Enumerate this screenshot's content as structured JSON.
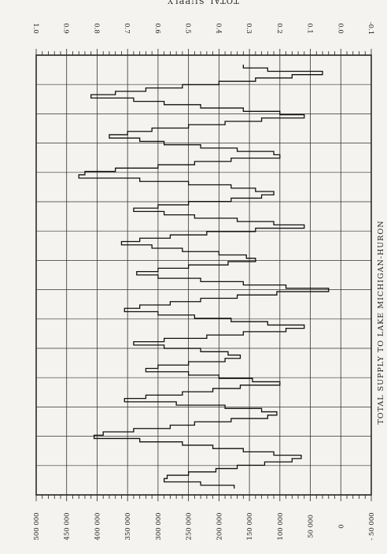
{
  "chart_data": {
    "type": "line",
    "title": "TOTAL SUPPLY TO LAKE MICHIGAN-HURON",
    "top_axis_label": "TOTAL SUPPLY",
    "top_axis_ticks": [
      "1.0",
      "0.9",
      "0.8",
      "0.7",
      "0.6",
      "0.5",
      "0.4",
      "0.3",
      "0.2",
      "0.1",
      "0.0",
      "-0.1"
    ],
    "side_axis_ticks": [
      "500 000",
      "450 000",
      "400 000",
      "350 000",
      "300 000",
      "250 000",
      "200 000",
      "150 000",
      "100 000",
      "50 000",
      "0",
      "- 50 000"
    ],
    "side_axis_range": [
      -50000,
      500000
    ],
    "top_axis_range": [
      -0.1,
      1.0
    ],
    "grid": true,
    "series": [
      {
        "values": [
          175000,
          230000,
          290000,
          285000,
          250000,
          205000,
          170000,
          125000,
          80000,
          65000,
          110000,
          160000,
          210000,
          260000,
          330000,
          405000,
          390000,
          340000,
          280000,
          240000,
          180000,
          120000,
          105000,
          130000,
          190000,
          270000,
          355000,
          320000,
          260000,
          210000,
          165000,
          100000,
          145000,
          200000,
          250000,
          320000,
          300000,
          250000,
          190000,
          165000,
          185000,
          230000,
          290000,
          340000,
          290000,
          220000,
          160000,
          90000,
          60000,
          120000,
          180000,
          240000,
          300000,
          355000,
          330000,
          280000,
          230000,
          170000,
          105000,
          20000,
          90000,
          160000,
          230000,
          300000,
          335000,
          300000,
          250000,
          185000,
          140000,
          155000,
          200000,
          260000,
          310000,
          360000,
          330000,
          280000,
          220000,
          140000,
          60000,
          110000,
          170000,
          240000,
          290000,
          340000,
          300000,
          250000,
          180000,
          130000,
          110000,
          140000,
          180000,
          250000,
          330000,
          430000,
          420000,
          370000,
          300000,
          240000,
          180000,
          100000,
          110000,
          170000,
          230000,
          290000,
          330000,
          380000,
          350000,
          310000,
          250000,
          190000,
          130000,
          60000,
          100000,
          160000,
          230000,
          290000,
          340000,
          410000,
          370000,
          320000,
          260000,
          200000,
          140000,
          80000,
          30000,
          120000,
          160000
        ]
      }
    ]
  }
}
